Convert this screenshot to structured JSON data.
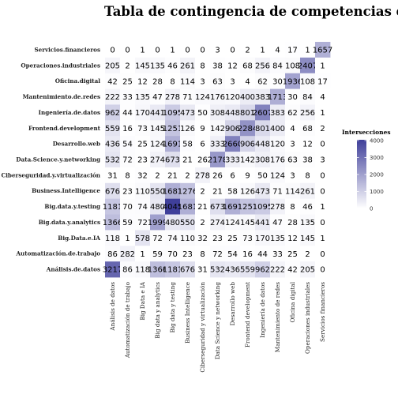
{
  "chart_data": {
    "type": "heatmap",
    "title": "Tabla de contingencia de competencias demandadas",
    "rows": [
      "Servicios.financieros",
      "Operaciones.industriales",
      "Oficina.digital",
      "Mantenimiento.de.redes",
      "Ingeniería.de.datos",
      "Frontend.development",
      "Desarrollo.web",
      "Data.Science.y.networking",
      "Ciberseguridad.y.virtualización",
      "Business.Intelligence",
      "Big.data.y.testing",
      "Big.data.y.analytics",
      "Big.Data.e.IA",
      "Automatización.de.trabajo",
      "Análisis.de.datos"
    ],
    "columns": [
      "Análisis de datos",
      "Automatización de trabajo",
      "Big Data e IA",
      "Big data y analytics",
      "Big data y testing",
      "Business Intelligence",
      "Ciberseguridad y virtualización",
      "Data Science y networking",
      "Desarrollo web",
      "Frontend development",
      "Ingeniería de datos",
      "Mantenimiento de redes",
      "Oficina digital",
      "Operaciones industriales",
      "Servicios financieros"
    ],
    "values": [
      [
        0,
        0,
        1,
        0,
        1,
        0,
        0,
        3,
        0,
        2,
        1,
        4,
        17,
        1,
        1657
      ],
      [
        205,
        2,
        145,
        135,
        46,
        261,
        8,
        38,
        12,
        68,
        256,
        84,
        108,
        2407,
        1
      ],
      [
        42,
        25,
        12,
        28,
        8,
        114,
        3,
        63,
        3,
        4,
        62,
        30,
        1936,
        108,
        17
      ],
      [
        222,
        33,
        135,
        47,
        278,
        71,
        124,
        176,
        120,
        400,
        383,
        1713,
        30,
        84,
        4
      ],
      [
        962,
        44,
        170,
        441,
        1095,
        473,
        50,
        308,
        448,
        801,
        2607,
        383,
        62,
        256,
        1
      ],
      [
        559,
        16,
        73,
        145,
        1251,
        126,
        9,
        142,
        906,
        2284,
        801,
        400,
        4,
        68,
        2
      ],
      [
        436,
        54,
        25,
        124,
        1691,
        58,
        6,
        333,
        2660,
        906,
        448,
        120,
        3,
        12,
        0
      ],
      [
        532,
        72,
        23,
        274,
        673,
        21,
        26,
        2178,
        333,
        142,
        308,
        176,
        63,
        38,
        3
      ],
      [
        31,
        8,
        32,
        2,
        21,
        2,
        278,
        26,
        6,
        9,
        50,
        124,
        3,
        8,
        0
      ],
      [
        676,
        23,
        110,
        550,
        1681,
        1276,
        2,
        21,
        58,
        126,
        473,
        71,
        114,
        261,
        0
      ],
      [
        1181,
        70,
        74,
        480,
        4045,
        1681,
        21,
        673,
        1691,
        1251,
        1095,
        278,
        8,
        46,
        1
      ],
      [
        1366,
        59,
        72,
        1999,
        480,
        550,
        2,
        274,
        124,
        145,
        441,
        47,
        28,
        135,
        0
      ],
      [
        118,
        1,
        578,
        72,
        74,
        110,
        32,
        23,
        25,
        73,
        170,
        135,
        12,
        145,
        1
      ],
      [
        86,
        282,
        1,
        59,
        70,
        23,
        8,
        72,
        54,
        16,
        44,
        33,
        25,
        2,
        0
      ],
      [
        3217,
        86,
        118,
        1366,
        1181,
        676,
        31,
        532,
        436,
        559,
        962,
        222,
        42,
        205,
        0
      ]
    ],
    "legend": {
      "title": "Intersecciones",
      "ticks": [
        0,
        1000,
        2000,
        3000,
        4000
      ],
      "range": [
        0,
        4045
      ],
      "position": "right",
      "color_low": "#ffffff",
      "color_high": "#3f3f9a"
    },
    "grid": false
  }
}
